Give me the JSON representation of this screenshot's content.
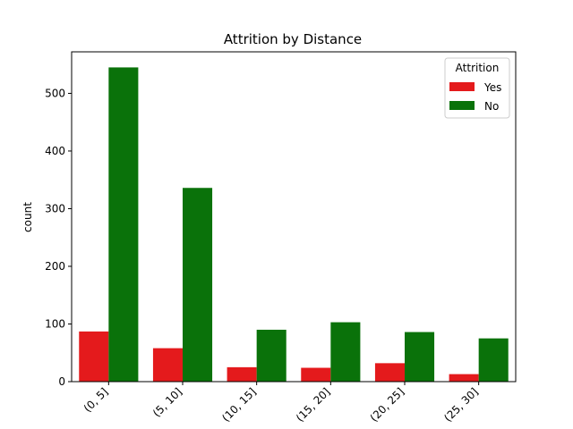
{
  "chart_data": {
    "type": "bar",
    "title": "Attrition by Distance",
    "xlabel": "",
    "ylabel": "count",
    "categories": [
      "(0, 5]",
      "(5, 10]",
      "(10, 15]",
      "(15, 20]",
      "(20, 25]",
      "(25, 30]"
    ],
    "series": [
      {
        "name": "Yes",
        "color": "#e41a1c",
        "values": [
          87,
          58,
          25,
          24,
          32,
          13
        ]
      },
      {
        "name": "No",
        "color": "#0a720a",
        "values": [
          545,
          336,
          90,
          103,
          86,
          75
        ]
      }
    ],
    "ylim": [
      0,
      572
    ],
    "yticks": [
      0,
      100,
      200,
      300,
      400,
      500
    ],
    "legend": {
      "title": "Attrition",
      "position": "top-right"
    },
    "grid": false
  }
}
